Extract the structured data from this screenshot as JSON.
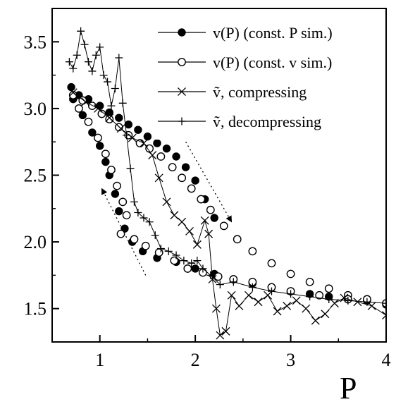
{
  "chart_data": {
    "type": "scatter",
    "xlabel": "P",
    "ylabel": "",
    "xlim": [
      0.5,
      4.0
    ],
    "ylim": [
      1.25,
      3.75
    ],
    "x_ticks": [
      {
        "value": 1,
        "label": "1"
      },
      {
        "value": 2,
        "label": "2"
      },
      {
        "value": 3,
        "label": "3"
      },
      {
        "value": 4,
        "label": "4"
      }
    ],
    "y_ticks": [
      {
        "value": 1.5,
        "label": "1.5"
      },
      {
        "value": 2.0,
        "label": "2.0"
      },
      {
        "value": 2.5,
        "label": "2.5"
      },
      {
        "value": 3.0,
        "label": "3.0"
      },
      {
        "value": 3.5,
        "label": "3.5"
      }
    ],
    "grid": false,
    "legend_position": "top-right",
    "series": [
      {
        "name": "v(P) (const. P sim.)",
        "marker": "filled-circle",
        "color": "#000000",
        "points": [
          [
            0.7,
            3.16
          ],
          [
            0.78,
            3.1
          ],
          [
            0.88,
            3.07
          ],
          [
            1.0,
            3.02
          ],
          [
            1.1,
            2.97
          ],
          [
            1.2,
            2.93
          ],
          [
            1.3,
            2.88
          ],
          [
            1.4,
            2.84
          ],
          [
            1.5,
            2.79
          ],
          [
            1.6,
            2.74
          ],
          [
            1.7,
            2.7
          ],
          [
            1.8,
            2.64
          ],
          [
            1.9,
            2.56
          ],
          [
            2.0,
            2.46
          ],
          [
            2.1,
            2.32
          ],
          [
            2.2,
            2.18
          ],
          [
            0.72,
            3.07
          ],
          [
            0.82,
            2.95
          ],
          [
            0.92,
            2.82
          ],
          [
            1.0,
            2.72
          ],
          [
            1.06,
            2.6
          ],
          [
            1.1,
            2.5
          ],
          [
            1.16,
            2.36
          ],
          [
            1.2,
            2.23
          ],
          [
            1.26,
            2.1
          ],
          [
            1.34,
            2.0
          ],
          [
            1.45,
            1.93
          ],
          [
            1.6,
            1.88
          ],
          [
            1.8,
            1.85
          ],
          [
            2.0,
            1.8
          ],
          [
            2.2,
            1.76
          ],
          [
            2.4,
            1.72
          ],
          [
            2.6,
            1.69
          ],
          [
            2.8,
            1.66
          ],
          [
            3.0,
            1.63
          ],
          [
            3.2,
            1.61
          ],
          [
            3.4,
            1.59
          ],
          [
            3.6,
            1.57
          ],
          [
            3.8,
            1.56
          ],
          [
            4.0,
            1.53
          ]
        ]
      },
      {
        "name": "v(P) (const. v sim.)",
        "marker": "open-circle",
        "color": "#000000",
        "points": [
          [
            0.72,
            3.1
          ],
          [
            0.82,
            3.06
          ],
          [
            0.92,
            3.02
          ],
          [
            1.02,
            2.96
          ],
          [
            1.1,
            2.92
          ],
          [
            1.2,
            2.86
          ],
          [
            1.3,
            2.8
          ],
          [
            1.42,
            2.74
          ],
          [
            1.52,
            2.7
          ],
          [
            1.64,
            2.64
          ],
          [
            1.76,
            2.56
          ],
          [
            1.86,
            2.48
          ],
          [
            1.96,
            2.4
          ],
          [
            2.06,
            2.32
          ],
          [
            2.16,
            2.24
          ],
          [
            2.3,
            2.12
          ],
          [
            2.44,
            2.02
          ],
          [
            2.6,
            1.93
          ],
          [
            2.8,
            1.84
          ],
          [
            3.0,
            1.76
          ],
          [
            3.2,
            1.7
          ],
          [
            3.4,
            1.65
          ],
          [
            3.6,
            1.6
          ],
          [
            3.8,
            1.57
          ],
          [
            4.0,
            1.54
          ],
          [
            0.78,
            3.0
          ],
          [
            0.88,
            2.9
          ],
          [
            0.98,
            2.78
          ],
          [
            1.06,
            2.66
          ],
          [
            1.12,
            2.54
          ],
          [
            1.18,
            2.42
          ],
          [
            1.24,
            2.3
          ],
          [
            1.28,
            2.2
          ],
          [
            1.22,
            2.06
          ],
          [
            1.36,
            2.02
          ],
          [
            1.48,
            1.97
          ],
          [
            1.62,
            1.92
          ],
          [
            1.78,
            1.86
          ],
          [
            1.92,
            1.8
          ],
          [
            2.08,
            1.77
          ],
          [
            2.24,
            1.74
          ],
          [
            2.4,
            1.72
          ],
          [
            2.6,
            1.7
          ],
          [
            2.8,
            1.66
          ],
          [
            3.0,
            1.63
          ],
          [
            3.3,
            1.6
          ],
          [
            3.6,
            1.57
          ]
        ]
      },
      {
        "name": "ṽ, compressing",
        "marker": "cross",
        "color": "#000000",
        "points": [
          [
            0.72,
            3.12
          ],
          [
            0.85,
            3.05
          ],
          [
            0.98,
            3.0
          ],
          [
            1.1,
            2.93
          ],
          [
            1.22,
            2.85
          ],
          [
            1.34,
            2.78
          ],
          [
            1.46,
            2.74
          ],
          [
            1.55,
            2.65
          ],
          [
            1.62,
            2.48
          ],
          [
            1.7,
            2.3
          ],
          [
            1.78,
            2.2
          ],
          [
            1.86,
            2.15
          ],
          [
            1.94,
            2.08
          ],
          [
            2.02,
            1.98
          ],
          [
            2.1,
            2.16
          ],
          [
            2.14,
            2.06
          ],
          [
            2.18,
            1.72
          ],
          [
            2.22,
            1.5
          ],
          [
            2.26,
            1.3
          ],
          [
            2.32,
            1.33
          ],
          [
            2.38,
            1.6
          ],
          [
            2.46,
            1.52
          ],
          [
            2.56,
            1.6
          ],
          [
            2.66,
            1.55
          ],
          [
            2.76,
            1.6
          ],
          [
            2.86,
            1.48
          ],
          [
            2.96,
            1.52
          ],
          [
            3.06,
            1.56
          ],
          [
            3.16,
            1.5
          ],
          [
            3.26,
            1.41
          ],
          [
            3.36,
            1.46
          ],
          [
            3.46,
            1.54
          ],
          [
            3.56,
            1.58
          ],
          [
            3.7,
            1.55
          ],
          [
            3.85,
            1.52
          ],
          [
            4.0,
            1.45
          ]
        ]
      },
      {
        "name": "ṽ, decompressing",
        "marker": "plus",
        "color": "#000000",
        "points": [
          [
            0.68,
            3.35
          ],
          [
            0.72,
            3.3
          ],
          [
            0.76,
            3.4
          ],
          [
            0.8,
            3.58
          ],
          [
            0.84,
            3.48
          ],
          [
            0.88,
            3.35
          ],
          [
            0.92,
            3.28
          ],
          [
            0.96,
            3.4
          ],
          [
            1.0,
            3.46
          ],
          [
            1.04,
            3.25
          ],
          [
            1.08,
            3.2
          ],
          [
            1.12,
            3.02
          ],
          [
            1.16,
            3.15
          ],
          [
            1.2,
            3.38
          ],
          [
            1.24,
            3.04
          ],
          [
            1.28,
            2.8
          ],
          [
            1.32,
            2.55
          ],
          [
            1.36,
            2.3
          ],
          [
            1.4,
            2.22
          ],
          [
            1.46,
            2.18
          ],
          [
            1.52,
            2.15
          ],
          [
            1.58,
            2.05
          ],
          [
            1.64,
            1.95
          ],
          [
            1.72,
            1.93
          ],
          [
            1.8,
            1.9
          ],
          [
            1.88,
            1.86
          ],
          [
            1.96,
            1.84
          ],
          [
            2.02,
            1.86
          ],
          [
            2.08,
            1.8
          ],
          [
            2.16,
            1.75
          ],
          [
            2.26,
            1.68
          ],
          [
            2.4,
            1.7
          ],
          [
            2.6,
            1.66
          ],
          [
            2.8,
            1.63
          ],
          [
            3.0,
            1.61
          ],
          [
            3.2,
            1.59
          ],
          [
            3.4,
            1.57
          ],
          [
            3.6,
            1.56
          ],
          [
            3.8,
            1.55
          ],
          [
            4.0,
            1.54
          ]
        ]
      }
    ],
    "annotations": [
      {
        "type": "dotted-arrow",
        "direction": "down-right",
        "from": [
          1.9,
          2.75
        ],
        "to": [
          2.38,
          2.15
        ]
      },
      {
        "type": "dotted-arrow",
        "direction": "up-left",
        "from": [
          1.48,
          1.75
        ],
        "to": [
          1.02,
          2.4
        ]
      }
    ]
  }
}
